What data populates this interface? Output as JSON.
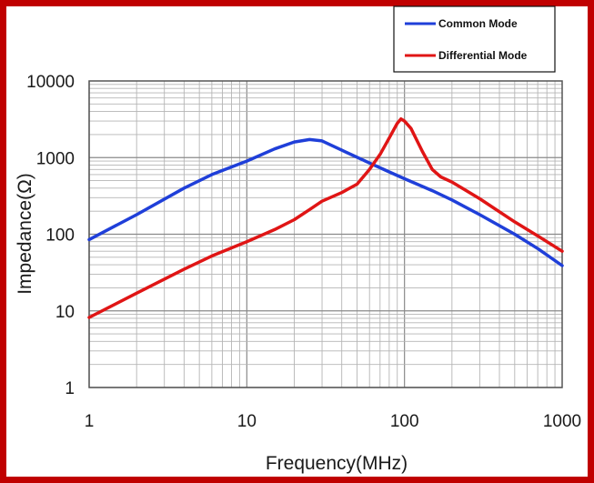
{
  "chart_data": {
    "type": "line",
    "xscale": "log",
    "yscale": "log",
    "xlim": [
      1,
      1000
    ],
    "ylim": [
      1,
      10000
    ],
    "xlabel": "Frequency(MHz)",
    "ylabel": "Impedance(Ω)",
    "x_ticks": [
      "1",
      "10",
      "100",
      "1000"
    ],
    "y_ticks": [
      "1",
      "10",
      "100",
      "1000",
      "10000"
    ],
    "grid": true,
    "legend_position": "top-right",
    "series": [
      {
        "name": "Common Mode",
        "color": "#1f3fd9",
        "x": [
          1,
          2,
          4,
          6,
          10,
          15,
          20,
          25,
          30,
          40,
          60,
          80,
          100,
          150,
          200,
          300,
          500,
          700,
          1000
        ],
        "y": [
          85,
          180,
          400,
          600,
          900,
          1300,
          1600,
          1720,
          1650,
          1250,
          850,
          650,
          530,
          370,
          280,
          180,
          100,
          65,
          39
        ]
      },
      {
        "name": "Differential Mode",
        "color": "#e01515",
        "x": [
          1,
          2,
          4,
          6,
          10,
          15,
          20,
          25,
          30,
          40,
          50,
          60,
          70,
          80,
          90,
          95,
          100,
          110,
          130,
          150,
          170,
          200,
          300,
          500,
          700,
          1000
        ],
        "y": [
          8.2,
          17,
          35,
          52,
          80,
          115,
          155,
          210,
          270,
          350,
          450,
          700,
          1100,
          1800,
          2800,
          3200,
          3000,
          2400,
          1200,
          700,
          560,
          480,
          290,
          145,
          95,
          60
        ]
      }
    ]
  }
}
